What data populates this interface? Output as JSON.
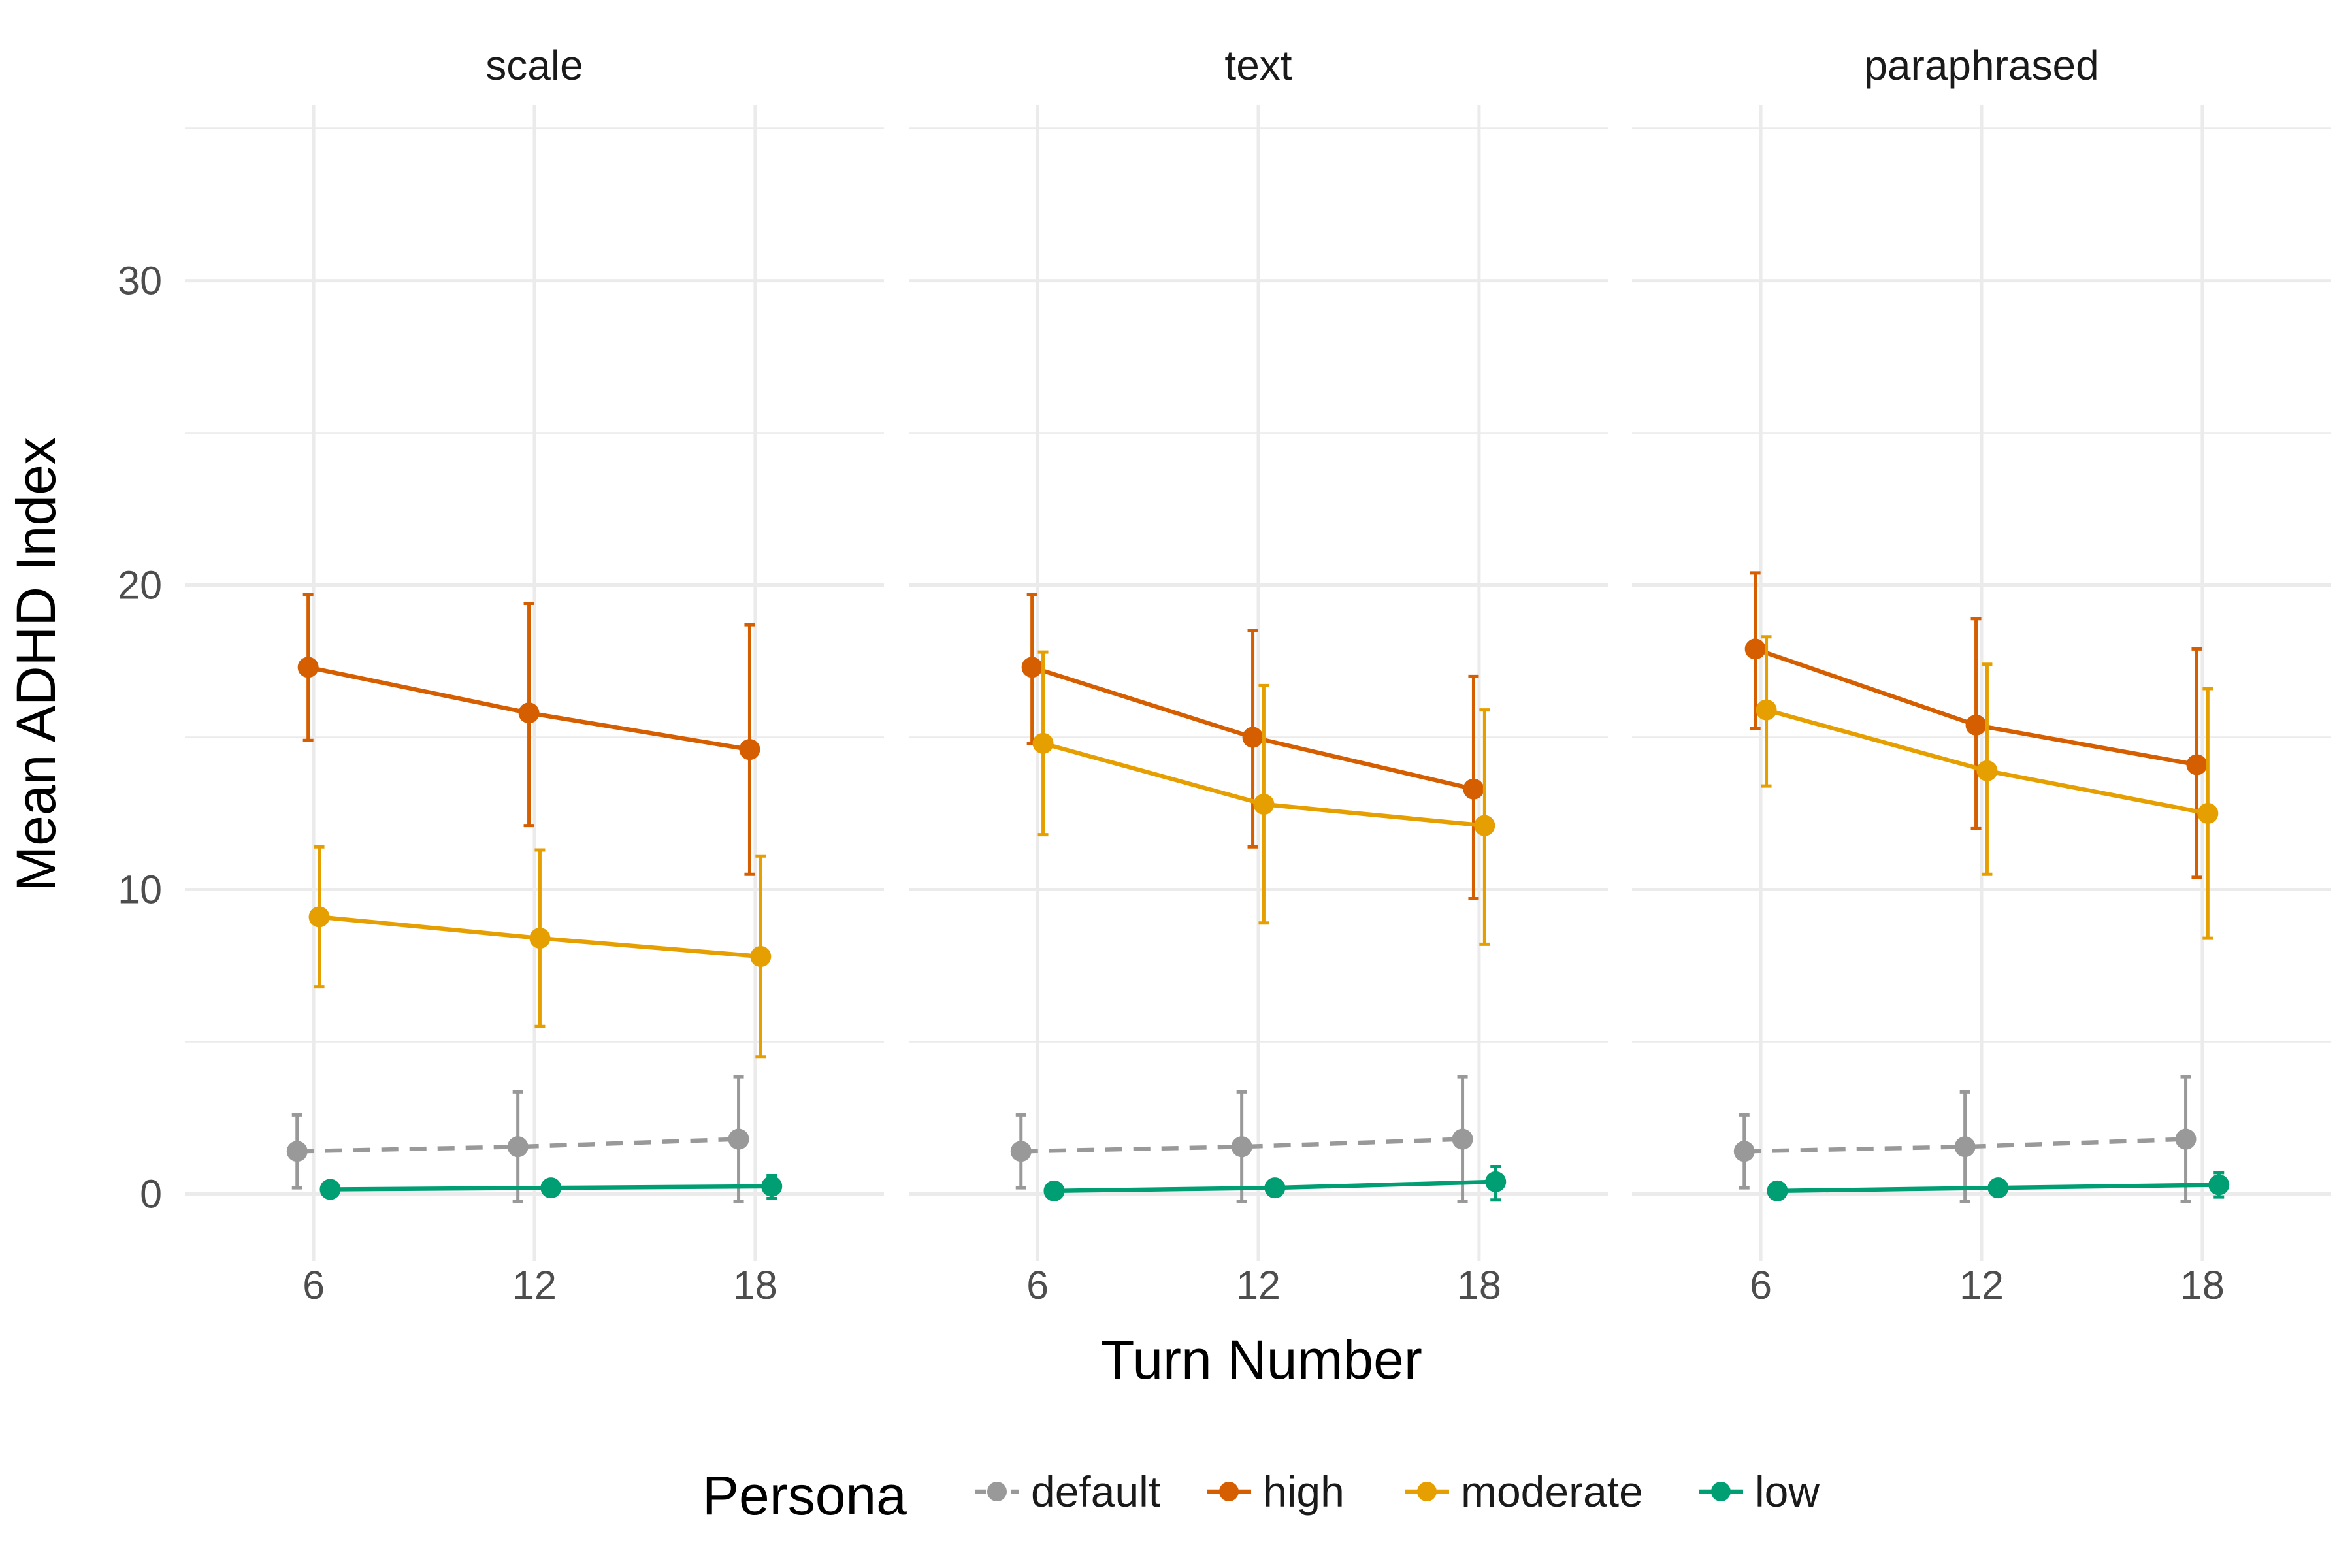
{
  "chart_data": {
    "type": "line",
    "ylabel": "Mean ADHD Index",
    "xlabel": "Turn Number",
    "x_ticks": [
      6,
      12,
      18
    ],
    "y_ticks": [
      0,
      10,
      20,
      30
    ],
    "ylim": [
      -2.2,
      36.0
    ],
    "xlim": [
      2.5,
      21.5
    ],
    "grid": true,
    "legend": {
      "title": "Persona",
      "position": "bottom",
      "entries": [
        {
          "name": "default",
          "color": "#999999",
          "linetype": "dashed"
        },
        {
          "name": "high",
          "color": "#D55E00",
          "linetype": "solid"
        },
        {
          "name": "moderate",
          "color": "#E69F00",
          "linetype": "solid"
        },
        {
          "name": "low",
          "color": "#009E73",
          "linetype": "solid"
        }
      ]
    },
    "panels": [
      {
        "title": "scale",
        "series": [
          {
            "name": "default",
            "x": [
              6,
              12,
              18
            ],
            "y": [
              1.4,
              1.55,
              1.8
            ],
            "err_low": [
              0.2,
              -0.25,
              -0.25
            ],
            "err_high": [
              2.6,
              3.35,
              3.85
            ]
          },
          {
            "name": "high",
            "x": [
              6,
              12,
              18
            ],
            "y": [
              17.3,
              15.8,
              14.6
            ],
            "err_low": [
              14.9,
              12.1,
              10.5
            ],
            "err_high": [
              19.7,
              19.4,
              18.7
            ]
          },
          {
            "name": "moderate",
            "x": [
              6,
              12,
              18
            ],
            "y": [
              9.1,
              8.4,
              7.8
            ],
            "err_low": [
              6.8,
              5.5,
              4.5
            ],
            "err_high": [
              11.4,
              11.3,
              11.1
            ]
          },
          {
            "name": "low",
            "x": [
              6,
              12,
              18
            ],
            "y": [
              0.15,
              0.2,
              0.25
            ],
            "err_low": [
              0.15,
              0.2,
              -0.15
            ],
            "err_high": [
              0.15,
              0.2,
              0.6
            ]
          }
        ]
      },
      {
        "title": "text",
        "series": [
          {
            "name": "default",
            "x": [
              6,
              12,
              18
            ],
            "y": [
              1.4,
              1.55,
              1.8
            ],
            "err_low": [
              0.2,
              -0.25,
              -0.25
            ],
            "err_high": [
              2.6,
              3.35,
              3.85
            ]
          },
          {
            "name": "high",
            "x": [
              6,
              12,
              18
            ],
            "y": [
              17.3,
              15.0,
              13.3
            ],
            "err_low": [
              14.8,
              11.4,
              9.7
            ],
            "err_high": [
              19.7,
              18.5,
              17.0
            ]
          },
          {
            "name": "moderate",
            "x": [
              6,
              12,
              18
            ],
            "y": [
              14.8,
              12.8,
              12.1
            ],
            "err_low": [
              11.8,
              8.9,
              8.2
            ],
            "err_high": [
              17.8,
              16.7,
              15.9
            ]
          },
          {
            "name": "low",
            "x": [
              6,
              12,
              18
            ],
            "y": [
              0.1,
              0.2,
              0.4
            ],
            "err_low": [
              0.1,
              0.2,
              -0.2
            ],
            "err_high": [
              0.1,
              0.2,
              0.9
            ]
          }
        ]
      },
      {
        "title": "paraphrased",
        "series": [
          {
            "name": "default",
            "x": [
              6,
              12,
              18
            ],
            "y": [
              1.4,
              1.55,
              1.8
            ],
            "err_low": [
              0.2,
              -0.25,
              -0.25
            ],
            "err_high": [
              2.6,
              3.35,
              3.85
            ]
          },
          {
            "name": "high",
            "x": [
              6,
              12,
              18
            ],
            "y": [
              17.9,
              15.4,
              14.1
            ],
            "err_low": [
              15.3,
              12.0,
              10.4
            ],
            "err_high": [
              20.4,
              18.9,
              17.9
            ]
          },
          {
            "name": "moderate",
            "x": [
              6,
              12,
              18
            ],
            "y": [
              15.9,
              13.9,
              12.5
            ],
            "err_low": [
              13.4,
              10.5,
              8.4
            ],
            "err_high": [
              18.3,
              17.4,
              16.6
            ]
          },
          {
            "name": "low",
            "x": [
              6,
              12,
              18
            ],
            "y": [
              0.1,
              0.2,
              0.3
            ],
            "err_low": [
              0.1,
              0.2,
              -0.1
            ],
            "err_high": [
              0.1,
              0.2,
              0.7
            ]
          }
        ]
      }
    ]
  }
}
